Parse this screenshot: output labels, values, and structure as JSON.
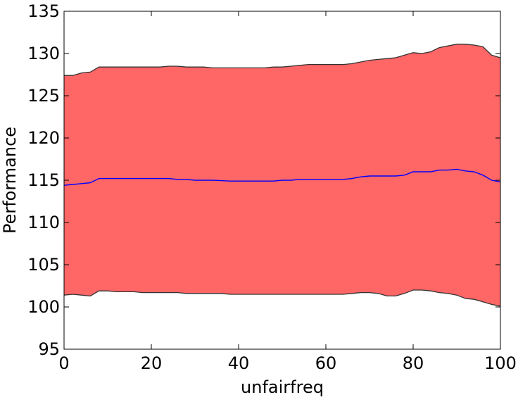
{
  "chart_data": {
    "type": "area",
    "xlabel": "unfairfreq",
    "ylabel": "Performance",
    "xlim": [
      0,
      100
    ],
    "ylim": [
      95,
      135
    ],
    "xticks": [
      0,
      20,
      40,
      60,
      80,
      100
    ],
    "yticks": [
      95,
      100,
      105,
      110,
      115,
      120,
      125,
      130,
      135
    ],
    "xtick_labels": [
      "0",
      "20",
      "40",
      "60",
      "80",
      "100"
    ],
    "ytick_labels": [
      "95",
      "100",
      "105",
      "110",
      "115",
      "120",
      "125",
      "130",
      "135"
    ],
    "grid": false,
    "legend": "none",
    "x": [
      0,
      2,
      4,
      6,
      8,
      10,
      12,
      14,
      16,
      18,
      20,
      22,
      24,
      26,
      28,
      30,
      32,
      34,
      36,
      38,
      40,
      42,
      44,
      46,
      48,
      50,
      52,
      54,
      56,
      58,
      60,
      62,
      64,
      66,
      68,
      70,
      72,
      74,
      76,
      78,
      80,
      82,
      84,
      86,
      88,
      90,
      92,
      94,
      96,
      98,
      100
    ],
    "series": [
      {
        "role": "mean",
        "color": "#0000ff",
        "values": [
          114.4,
          114.5,
          114.6,
          114.7,
          115.2,
          115.2,
          115.2,
          115.2,
          115.2,
          115.2,
          115.2,
          115.2,
          115.2,
          115.1,
          115.1,
          115.0,
          115.0,
          115.0,
          114.95,
          114.9,
          114.9,
          114.9,
          114.9,
          114.9,
          114.9,
          115.0,
          115.0,
          115.1,
          115.1,
          115.1,
          115.1,
          115.1,
          115.1,
          115.2,
          115.4,
          115.5,
          115.5,
          115.5,
          115.5,
          115.6,
          116.0,
          116.0,
          116.0,
          116.2,
          116.2,
          116.3,
          116.1,
          116.0,
          115.6,
          115.0,
          114.8
        ]
      },
      {
        "role": "upper-bound",
        "color": "#333333",
        "values": [
          127.4,
          127.4,
          127.7,
          127.8,
          128.4,
          128.4,
          128.4,
          128.4,
          128.4,
          128.4,
          128.4,
          128.4,
          128.5,
          128.5,
          128.4,
          128.4,
          128.4,
          128.3,
          128.3,
          128.3,
          128.3,
          128.3,
          128.3,
          128.3,
          128.4,
          128.4,
          128.5,
          128.6,
          128.7,
          128.7,
          128.7,
          128.7,
          128.7,
          128.8,
          129.0,
          129.2,
          129.3,
          129.4,
          129.5,
          129.8,
          130.1,
          130.0,
          130.2,
          130.7,
          130.9,
          131.1,
          131.1,
          131.0,
          130.8,
          129.8,
          129.5
        ]
      },
      {
        "role": "lower-bound",
        "color": "#333333",
        "values": [
          101.4,
          101.5,
          101.4,
          101.3,
          101.9,
          101.9,
          101.8,
          101.8,
          101.8,
          101.7,
          101.7,
          101.7,
          101.7,
          101.7,
          101.6,
          101.6,
          101.6,
          101.6,
          101.6,
          101.5,
          101.5,
          101.5,
          101.5,
          101.5,
          101.5,
          101.5,
          101.5,
          101.5,
          101.5,
          101.5,
          101.5,
          101.5,
          101.5,
          101.6,
          101.7,
          101.7,
          101.6,
          101.3,
          101.3,
          101.6,
          102.0,
          102.0,
          101.9,
          101.7,
          101.6,
          101.4,
          101.0,
          100.9,
          100.6,
          100.3,
          100.1
        ]
      }
    ],
    "fill_color": "#ff6666"
  }
}
